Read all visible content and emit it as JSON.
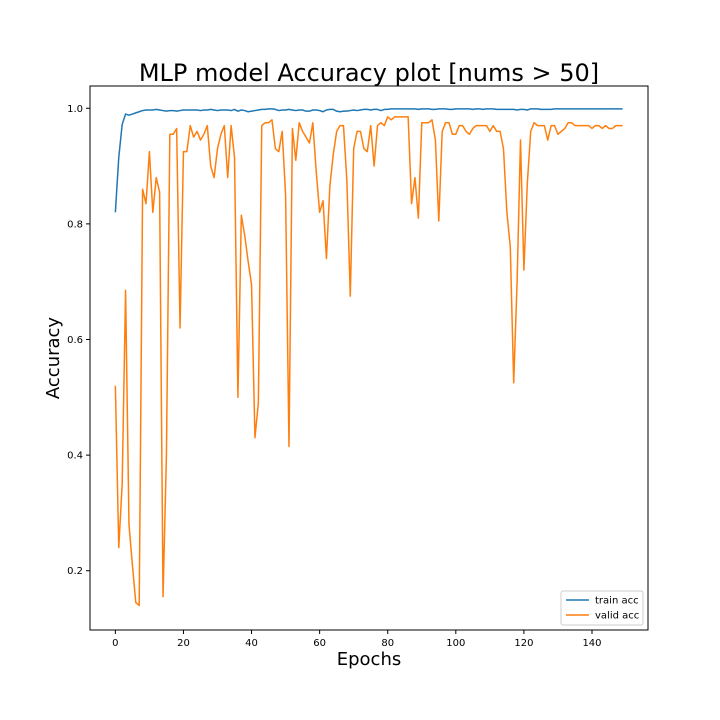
{
  "chart_data": {
    "type": "line",
    "title": "MLP model Accuracy plot [nums > 50]",
    "xlabel": "Epochs",
    "ylabel": "Accuracy",
    "xlim": [
      -7.45,
      156.45
    ],
    "ylim": [
      0.0975,
      1.0385
    ],
    "xticks": [
      0,
      20,
      40,
      60,
      80,
      100,
      120,
      140
    ],
    "yticks": [
      0.2,
      0.4,
      0.6,
      0.8,
      1.0
    ],
    "ytick_labels": [
      "0.2",
      "0.4",
      "0.6",
      "0.8",
      "1.0"
    ],
    "grid": false,
    "legend_position": "lower-right",
    "series": [
      {
        "name": "train acc",
        "color": "#1f77b4",
        "x": [
          0,
          1,
          2,
          3,
          4,
          5,
          6,
          7,
          8,
          9,
          10,
          11,
          12,
          13,
          14,
          15,
          16,
          17,
          18,
          19,
          20,
          21,
          22,
          23,
          24,
          25,
          26,
          27,
          28,
          29,
          30,
          31,
          32,
          33,
          34,
          35,
          36,
          37,
          38,
          39,
          40,
          41,
          42,
          43,
          44,
          45,
          46,
          47,
          48,
          49,
          50,
          51,
          52,
          53,
          54,
          55,
          56,
          57,
          58,
          59,
          60,
          61,
          62,
          63,
          64,
          65,
          66,
          67,
          68,
          69,
          70,
          71,
          72,
          73,
          74,
          75,
          76,
          77,
          78,
          79,
          80,
          81,
          82,
          83,
          84,
          85,
          86,
          87,
          88,
          89,
          90,
          91,
          92,
          93,
          94,
          95,
          96,
          97,
          98,
          99,
          100,
          101,
          102,
          103,
          104,
          105,
          106,
          107,
          108,
          109,
          110,
          111,
          112,
          113,
          114,
          115,
          116,
          117,
          118,
          119,
          120,
          121,
          122,
          123,
          124,
          125,
          126,
          127,
          128,
          129,
          130,
          131,
          132,
          133,
          134,
          135,
          136,
          137,
          138,
          139,
          140,
          141,
          142,
          143,
          144,
          145,
          146,
          147,
          148,
          149
        ],
        "values": [
          0.82,
          0.915,
          0.972,
          0.99,
          0.988,
          0.99,
          0.992,
          0.994,
          0.996,
          0.997,
          0.997,
          0.997,
          0.998,
          0.997,
          0.996,
          0.995,
          0.996,
          0.996,
          0.995,
          0.996,
          0.997,
          0.997,
          0.997,
          0.997,
          0.997,
          0.996,
          0.997,
          0.997,
          0.998,
          0.997,
          0.996,
          0.997,
          0.997,
          0.997,
          0.996,
          0.998,
          0.995,
          0.997,
          0.996,
          0.994,
          0.995,
          0.996,
          0.997,
          0.998,
          0.998,
          0.999,
          0.999,
          0.998,
          0.996,
          0.997,
          0.997,
          0.998,
          0.997,
          0.996,
          0.997,
          0.997,
          0.995,
          0.995,
          0.997,
          0.997,
          0.996,
          0.994,
          0.997,
          0.998,
          0.998,
          0.995,
          0.994,
          0.995,
          0.995,
          0.996,
          0.997,
          0.996,
          0.997,
          0.998,
          0.998,
          0.997,
          0.998,
          0.998,
          0.996,
          0.998,
          0.998,
          0.999,
          0.999,
          0.999,
          0.999,
          0.999,
          0.999,
          0.999,
          0.999,
          0.998,
          0.999,
          0.999,
          0.999,
          0.998,
          0.998,
          0.999,
          0.999,
          0.999,
          0.998,
          0.998,
          0.999,
          0.999,
          0.999,
          0.999,
          0.999,
          0.998,
          0.999,
          0.999,
          0.998,
          0.999,
          0.999,
          0.999,
          0.998,
          0.998,
          0.998,
          0.998,
          0.998,
          0.998,
          0.997,
          0.998,
          0.998,
          0.997,
          0.999,
          0.999,
          0.999,
          0.998,
          0.998,
          0.998,
          0.998,
          0.999,
          0.999,
          0.999,
          0.999,
          0.999,
          0.999,
          0.999,
          0.999,
          0.999,
          0.999,
          0.999,
          0.999,
          0.999,
          0.999,
          0.999,
          0.999,
          0.999,
          0.999,
          0.999,
          0.999,
          0.999
        ]
      },
      {
        "name": "valid acc",
        "color": "#ff7f0e",
        "x": [
          0,
          1,
          2,
          3,
          4,
          5,
          6,
          7,
          8,
          9,
          10,
          11,
          12,
          13,
          14,
          15,
          16,
          17,
          18,
          19,
          20,
          21,
          22,
          23,
          24,
          25,
          26,
          27,
          28,
          29,
          30,
          31,
          32,
          33,
          34,
          35,
          36,
          37,
          38,
          39,
          40,
          41,
          42,
          43,
          44,
          45,
          46,
          47,
          48,
          49,
          50,
          51,
          52,
          53,
          54,
          55,
          56,
          57,
          58,
          59,
          60,
          61,
          62,
          63,
          64,
          65,
          66,
          67,
          68,
          69,
          70,
          71,
          72,
          73,
          74,
          75,
          76,
          77,
          78,
          79,
          80,
          81,
          82,
          83,
          84,
          85,
          86,
          87,
          88,
          89,
          90,
          91,
          92,
          93,
          94,
          95,
          96,
          97,
          98,
          99,
          100,
          101,
          102,
          103,
          104,
          105,
          106,
          107,
          108,
          109,
          110,
          111,
          112,
          113,
          114,
          115,
          116,
          117,
          118,
          119,
          120,
          121,
          122,
          123,
          124,
          125,
          126,
          127,
          128,
          129,
          130,
          131,
          132,
          133,
          134,
          135,
          136,
          137,
          138,
          139,
          140,
          141,
          142,
          143,
          144,
          145,
          146,
          147,
          148,
          149
        ],
        "values": [
          0.52,
          0.24,
          0.35,
          0.685,
          0.28,
          0.21,
          0.145,
          0.14,
          0.86,
          0.835,
          0.925,
          0.82,
          0.88,
          0.855,
          0.155,
          0.4,
          0.955,
          0.955,
          0.965,
          0.62,
          0.925,
          0.925,
          0.97,
          0.95,
          0.96,
          0.945,
          0.955,
          0.97,
          0.9,
          0.88,
          0.93,
          0.955,
          0.97,
          0.88,
          0.97,
          0.915,
          0.5,
          0.815,
          0.78,
          0.735,
          0.695,
          0.43,
          0.49,
          0.97,
          0.975,
          0.975,
          0.98,
          0.93,
          0.925,
          0.96,
          0.85,
          0.415,
          0.965,
          0.91,
          0.975,
          0.96,
          0.95,
          0.94,
          0.975,
          0.89,
          0.82,
          0.84,
          0.74,
          0.865,
          0.92,
          0.96,
          0.97,
          0.97,
          0.875,
          0.675,
          0.93,
          0.96,
          0.96,
          0.93,
          0.925,
          0.97,
          0.9,
          0.97,
          0.975,
          0.97,
          0.985,
          0.98,
          0.985,
          0.985,
          0.985,
          0.985,
          0.985,
          0.835,
          0.88,
          0.81,
          0.975,
          0.975,
          0.975,
          0.98,
          0.945,
          0.805,
          0.96,
          0.975,
          0.975,
          0.955,
          0.955,
          0.97,
          0.97,
          0.96,
          0.955,
          0.965,
          0.97,
          0.97,
          0.97,
          0.97,
          0.96,
          0.97,
          0.96,
          0.96,
          0.93,
          0.82,
          0.76,
          0.525,
          0.7,
          0.945,
          0.72,
          0.87,
          0.96,
          0.975,
          0.97,
          0.97,
          0.97,
          0.945,
          0.97,
          0.97,
          0.955,
          0.96,
          0.965,
          0.975,
          0.975,
          0.97,
          0.97,
          0.97,
          0.97,
          0.97,
          0.965,
          0.97,
          0.97,
          0.965,
          0.97,
          0.965,
          0.965,
          0.97,
          0.97,
          0.97
        ]
      }
    ]
  }
}
